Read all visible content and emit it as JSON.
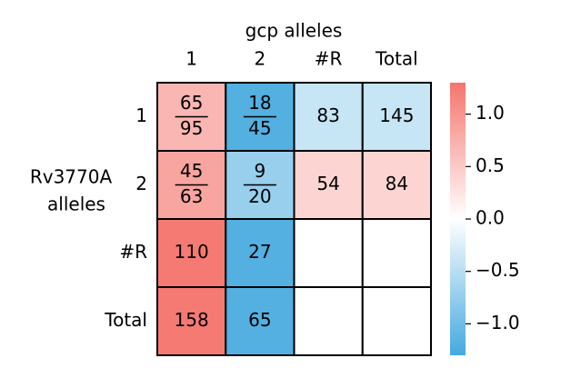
{
  "chart_data": {
    "type": "heatmap",
    "x_title": "gcp alleles",
    "y_title": [
      "Rv3770A",
      "alleles"
    ],
    "x_categories": [
      "1",
      "2",
      "#R",
      "Total"
    ],
    "y_categories": [
      "1",
      "2",
      "#R",
      "Total"
    ],
    "values": [
      [
        0.69,
        -1.2,
        -0.4,
        -0.4
      ],
      [
        0.85,
        -0.73,
        0.4,
        0.4
      ],
      [
        1.25,
        -1.2,
        null,
        null
      ],
      [
        1.25,
        -1.2,
        null,
        null
      ]
    ],
    "cell_labels": [
      [
        {
          "numerator": "65",
          "denominator": "95"
        },
        {
          "numerator": "18",
          "denominator": "45"
        },
        "83",
        "145"
      ],
      [
        {
          "numerator": "45",
          "denominator": "63"
        },
        {
          "numerator": "9",
          "denominator": "20"
        },
        "54",
        "84"
      ],
      [
        "110",
        "27",
        null,
        null
      ],
      [
        "158",
        "65",
        null,
        null
      ]
    ],
    "colormap": [
      "#45a9df",
      "#ffffff",
      "#f5756d"
    ],
    "zlim": [
      -1.3,
      1.3
    ],
    "zticks": [
      {
        "value": 1.0,
        "label": "1.0"
      },
      {
        "value": 0.5,
        "label": "0.5"
      },
      {
        "value": 0.0,
        "label": "0.0"
      },
      {
        "value": -0.5,
        "label": "−0.5"
      },
      {
        "value": -1.0,
        "label": "−1.0"
      }
    ]
  }
}
